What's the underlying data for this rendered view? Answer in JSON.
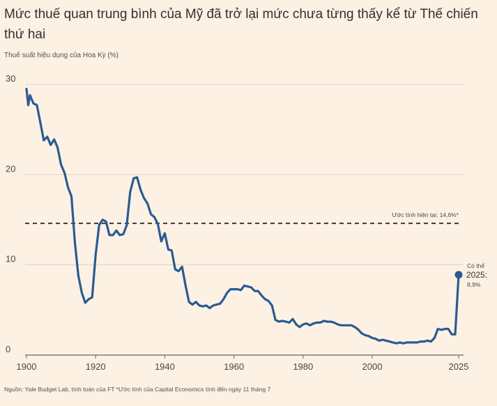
{
  "title": "Mức thuế quan trung bình của Mỹ đã trở lại mức chưa từng thấy kể từ Thế chiến thứ hai",
  "subtitle": "Thuế suất hiệu dụng của Hoa Kỳ (%)",
  "source": "Nguồn: Yale Budget Lab, tính toán của FT *Ước tính của Capital Economics tính đến ngày 11 tháng 7",
  "colors": {
    "background": "#fdf1e4",
    "line": "#2a5b92",
    "grid": "#dcd1c4",
    "dashed": "#2c2c2c"
  },
  "chart_data": {
    "type": "line",
    "title": "Mức thuế quan trung bình của Mỹ đã trở lại mức chưa từng thấy kể từ Thế chiến thứ hai",
    "ylabel": "Thuế suất hiệu dụng của Hoa Kỳ (%)",
    "xlabel": "",
    "xlim": [
      1900,
      2025
    ],
    "ylim": [
      0,
      30
    ],
    "grid": true,
    "x_ticks": [
      "1900",
      "1920",
      "1940",
      "1960",
      "1980",
      "2000",
      "2025"
    ],
    "y_ticks": [
      "30",
      "20",
      "10",
      "0"
    ],
    "series": [
      {
        "x": [
          1900,
          1900.5,
          1901,
          1902,
          1903,
          1904,
          1905,
          1906,
          1907,
          1908,
          1909,
          1910,
          1911,
          1912,
          1913,
          1914,
          1915,
          1916,
          1917,
          1918,
          1919,
          1920,
          1921,
          1922,
          1923,
          1924,
          1925,
          1926,
          1927,
          1928,
          1929,
          1930,
          1931,
          1932,
          1933,
          1934,
          1935,
          1936,
          1937,
          1938,
          1939,
          1940,
          1941,
          1942,
          1943,
          1944,
          1945,
          1946,
          1947,
          1948,
          1949,
          1950,
          1951,
          1952,
          1953,
          1954,
          1955,
          1956,
          1957,
          1958,
          1959,
          1960,
          1961,
          1962,
          1963,
          1964,
          1965,
          1966,
          1967,
          1968,
          1969,
          1970,
          1971,
          1972,
          1973,
          1974,
          1975,
          1976,
          1977,
          1978,
          1979,
          1980,
          1981,
          1982,
          1983,
          1984,
          1985,
          1986,
          1987,
          1988,
          1989,
          1990,
          1991,
          1992,
          1993,
          1994,
          1995,
          1996,
          1997,
          1998,
          1999,
          2000,
          2001,
          2002,
          2003,
          2004,
          2005,
          2006,
          2007,
          2008,
          2009,
          2010,
          2011,
          2012,
          2013,
          2014,
          2015,
          2016,
          2017,
          2018,
          2019,
          2020,
          2021,
          2022,
          2023,
          2024
        ],
        "y": [
          29.5,
          27.7,
          28.8,
          27.9,
          27.7,
          25.8,
          23.8,
          24.2,
          23.3,
          23.9,
          23.0,
          21.1,
          20.2,
          18.6,
          17.6,
          12.5,
          8.8,
          6.9,
          5.8,
          6.2,
          6.4,
          11.1,
          14.4,
          15.0,
          14.8,
          13.3,
          13.3,
          13.8,
          13.3,
          13.4,
          14.4,
          18.1,
          19.6,
          19.7,
          18.3,
          17.4,
          16.8,
          15.6,
          15.3,
          14.5,
          12.6,
          13.5,
          11.7,
          11.6,
          9.5,
          9.3,
          9.8,
          7.7,
          5.9,
          5.6,
          5.9,
          5.5,
          5.4,
          5.5,
          5.2,
          5.5,
          5.6,
          5.7,
          6.2,
          6.9,
          7.3,
          7.3,
          7.3,
          7.2,
          7.7,
          7.6,
          7.5,
          7.1,
          7.1,
          6.6,
          6.2,
          6.0,
          5.5,
          3.9,
          3.7,
          3.8,
          3.7,
          3.6,
          4.0,
          3.4,
          3.1,
          3.4,
          3.5,
          3.3,
          3.5,
          3.6,
          3.6,
          3.8,
          3.7,
          3.7,
          3.6,
          3.4,
          3.3,
          3.3,
          3.3,
          3.3,
          3.1,
          2.8,
          2.4,
          2.2,
          2.1,
          1.9,
          1.8,
          1.6,
          1.7,
          1.6,
          1.5,
          1.4,
          1.3,
          1.4,
          1.3,
          1.4,
          1.4,
          1.4,
          1.4,
          1.5,
          1.5,
          1.6,
          1.5,
          1.9,
          2.9,
          2.8,
          2.9,
          2.9,
          2.3,
          2.3
        ]
      },
      {
        "x": [
          2024,
          2025
        ],
        "y": [
          2.3,
          8.9
        ]
      }
    ],
    "reference_line": {
      "label": "Ước tính hiện tại: 14,6%*",
      "y": 14.6
    },
    "highlight_point": {
      "x": 2025,
      "y": 8.9,
      "label_line1": "Có thể",
      "label_year": "2025:",
      "label_value": "8,9%"
    }
  }
}
